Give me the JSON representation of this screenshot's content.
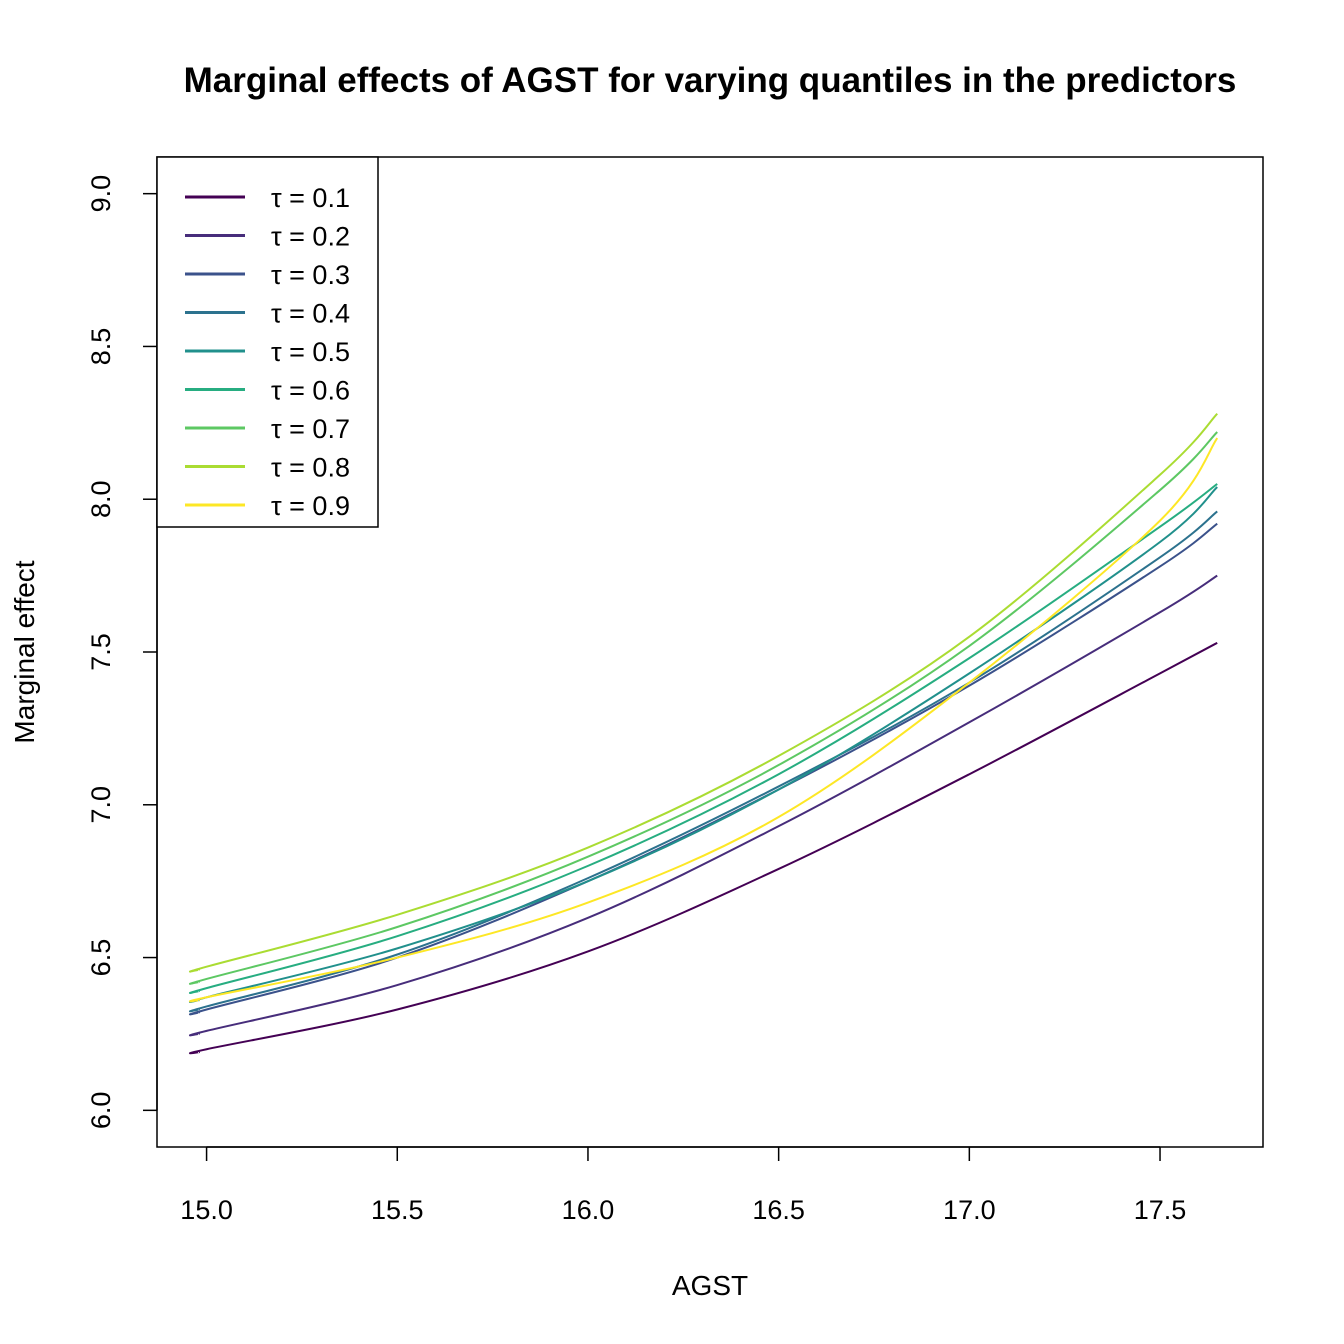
{
  "chart_data": {
    "type": "line",
    "title": "Marginal effects of AGST for varying quantiles in the predictors",
    "xlabel": "AGST",
    "ylabel": "Marginal effect",
    "xlim": [
      14.87,
      17.77
    ],
    "ylim": [
      5.88,
      9.12
    ],
    "xticks": [
      15.0,
      15.5,
      16.0,
      16.5,
      17.0,
      17.5
    ],
    "xtick_labels": [
      "15.0",
      "15.5",
      "16.0",
      "16.5",
      "17.0",
      "17.5"
    ],
    "yticks": [
      6.0,
      6.5,
      7.0,
      7.5,
      8.0,
      8.5,
      9.0
    ],
    "ytick_labels": [
      "6.0",
      "6.5",
      "7.0",
      "7.5",
      "8.0",
      "8.5",
      "9.0"
    ],
    "grid": false,
    "legend_position": "top-left",
    "x": [
      14.98,
      15.0,
      15.5,
      16.0,
      16.5,
      17.0,
      17.5,
      17.65
    ],
    "series": [
      {
        "name": "τ = 0.1",
        "color": "#440154",
        "values": [
          6.19,
          6.2,
          6.33,
          6.52,
          6.79,
          7.1,
          7.43,
          7.53
        ]
      },
      {
        "name": "τ = 0.2",
        "color": "#472D7B",
        "values": [
          6.25,
          6.26,
          6.41,
          6.63,
          6.93,
          7.27,
          7.63,
          7.75
        ]
      },
      {
        "name": "τ = 0.3",
        "color": "#3B528B",
        "values": [
          6.32,
          6.33,
          6.5,
          6.75,
          7.05,
          7.39,
          7.78,
          7.92
        ]
      },
      {
        "name": "τ = 0.4",
        "color": "#2C728E",
        "values": [
          6.33,
          6.34,
          6.51,
          6.76,
          7.06,
          7.4,
          7.81,
          7.96
        ]
      },
      {
        "name": "τ = 0.5",
        "color": "#21908C",
        "values": [
          6.36,
          6.37,
          6.53,
          6.75,
          7.05,
          7.43,
          7.86,
          8.04
        ]
      },
      {
        "name": "τ = 0.6",
        "color": "#27AD81",
        "values": [
          6.39,
          6.4,
          6.57,
          6.8,
          7.1,
          7.48,
          7.91,
          8.05
        ]
      },
      {
        "name": "τ = 0.7",
        "color": "#5DC863",
        "values": [
          6.42,
          6.43,
          6.6,
          6.83,
          7.13,
          7.52,
          8.03,
          8.22
        ]
      },
      {
        "name": "τ = 0.8",
        "color": "#AADC32",
        "values": [
          6.46,
          6.47,
          6.64,
          6.86,
          7.16,
          7.55,
          8.08,
          8.28
        ]
      },
      {
        "name": "τ = 0.9",
        "color": "#FDE725",
        "values": [
          6.36,
          6.37,
          6.5,
          6.68,
          6.96,
          7.4,
          7.93,
          8.2
        ]
      }
    ]
  }
}
